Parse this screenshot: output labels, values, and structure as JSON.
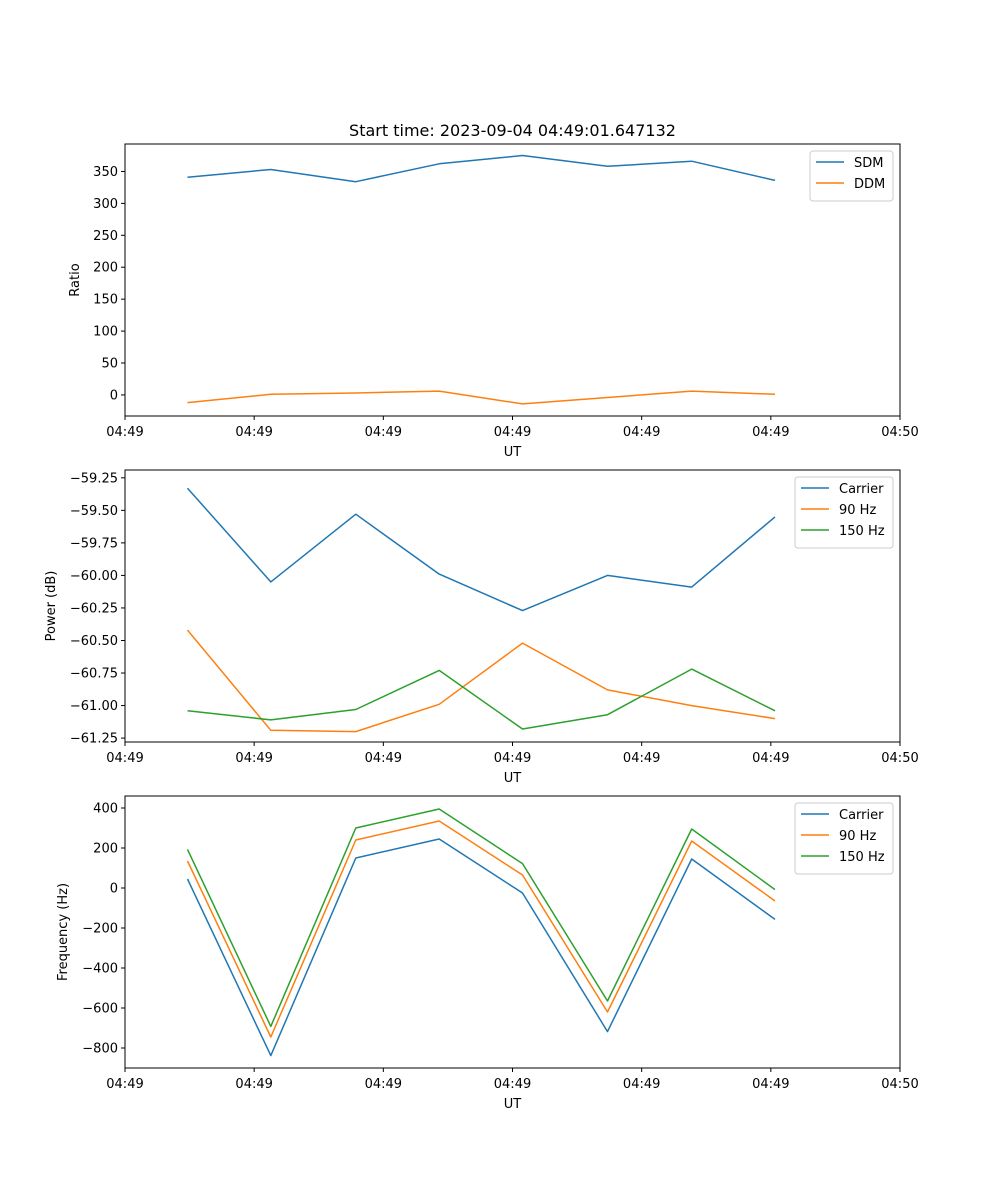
{
  "chart_data": [
    {
      "type": "line",
      "title": "Start time: 2023-09-04 04:49:01.647132",
      "xlabel": "UT",
      "ylabel": "Ratio",
      "xlim": [
        0,
        9.3
      ],
      "ylim": [
        -33,
        393
      ],
      "x_ticks": [
        0,
        1.55,
        3.1,
        4.65,
        6.2,
        7.75,
        9.3
      ],
      "x_tick_labels": [
        "04:49",
        "04:49",
        "04:49",
        "04:49",
        "04:49",
        "04:49",
        "04:50"
      ],
      "y_ticks": [
        0,
        50,
        100,
        150,
        200,
        250,
        300,
        350
      ],
      "y_tick_labels": [
        "0",
        "50",
        "100",
        "150",
        "200",
        "250",
        "300",
        "350"
      ],
      "x": [
        0.75,
        1.75,
        2.77,
        3.77,
        4.77,
        5.79,
        6.8,
        7.8
      ],
      "series": [
        {
          "name": "SDM",
          "color": "#1f77b4",
          "values": [
            341,
            353,
            334,
            362,
            375,
            358,
            366,
            336
          ]
        },
        {
          "name": "DDM",
          "color": "#ff7f0e",
          "values": [
            -12,
            1,
            3,
            6,
            -14,
            -4,
            6,
            1
          ]
        }
      ],
      "legend": "top-right"
    },
    {
      "type": "line",
      "title": "",
      "xlabel": "UT",
      "ylabel": "Power (dB)",
      "xlim": [
        0,
        9.3
      ],
      "ylim": [
        -61.28,
        -59.19
      ],
      "x_ticks": [
        0,
        1.55,
        3.1,
        4.65,
        6.2,
        7.75,
        9.3
      ],
      "x_tick_labels": [
        "04:49",
        "04:49",
        "04:49",
        "04:49",
        "04:49",
        "04:49",
        "04:50"
      ],
      "y_ticks": [
        -61.25,
        -61.0,
        -60.75,
        -60.5,
        -60.25,
        -60.0,
        -59.75,
        -59.5,
        -59.25
      ],
      "y_tick_labels": [
        "−61.25",
        "−61.00",
        "−60.75",
        "−60.50",
        "−60.25",
        "−60.00",
        "−59.75",
        "−59.50",
        "−59.25"
      ],
      "x": [
        0.75,
        1.75,
        2.77,
        3.77,
        4.77,
        5.79,
        6.8,
        7.8
      ],
      "series": [
        {
          "name": "Carrier",
          "color": "#1f77b4",
          "values": [
            -59.33,
            -60.05,
            -59.53,
            -59.99,
            -60.27,
            -60.0,
            -60.09,
            -59.55
          ]
        },
        {
          "name": "90 Hz",
          "color": "#ff7f0e",
          "values": [
            -60.42,
            -61.19,
            -61.2,
            -60.99,
            -60.52,
            -60.88,
            -61.0,
            -61.1
          ]
        },
        {
          "name": "150 Hz",
          "color": "#2ca02c",
          "values": [
            -61.04,
            -61.11,
            -61.03,
            -60.73,
            -61.18,
            -61.07,
            -60.72,
            -61.04
          ]
        }
      ],
      "legend": "top-right"
    },
    {
      "type": "line",
      "title": "",
      "xlabel": "UT",
      "ylabel": "Frequency (Hz)",
      "xlim": [
        0,
        9.3
      ],
      "ylim": [
        -900,
        460
      ],
      "x_ticks": [
        0,
        1.55,
        3.1,
        4.65,
        6.2,
        7.75,
        9.3
      ],
      "x_tick_labels": [
        "04:49",
        "04:49",
        "04:49",
        "04:49",
        "04:49",
        "04:49",
        "04:50"
      ],
      "y_ticks": [
        -800,
        -600,
        -400,
        -200,
        0,
        200,
        400
      ],
      "y_tick_labels": [
        "−800",
        "−600",
        "−400",
        "−200",
        "0",
        "200",
        "400"
      ],
      "x": [
        0.75,
        1.75,
        2.77,
        3.77,
        4.77,
        5.79,
        6.8,
        7.8
      ],
      "series": [
        {
          "name": "Carrier",
          "color": "#1f77b4",
          "values": [
            45,
            -838,
            150,
            245,
            -25,
            -718,
            145,
            -157
          ]
        },
        {
          "name": "90 Hz",
          "color": "#ff7f0e",
          "values": [
            135,
            -745,
            240,
            335,
            65,
            -620,
            235,
            -65
          ]
        },
        {
          "name": "150 Hz",
          "color": "#2ca02c",
          "values": [
            193,
            -692,
            300,
            395,
            122,
            -565,
            295,
            -8
          ]
        }
      ],
      "legend": "top-right"
    }
  ]
}
